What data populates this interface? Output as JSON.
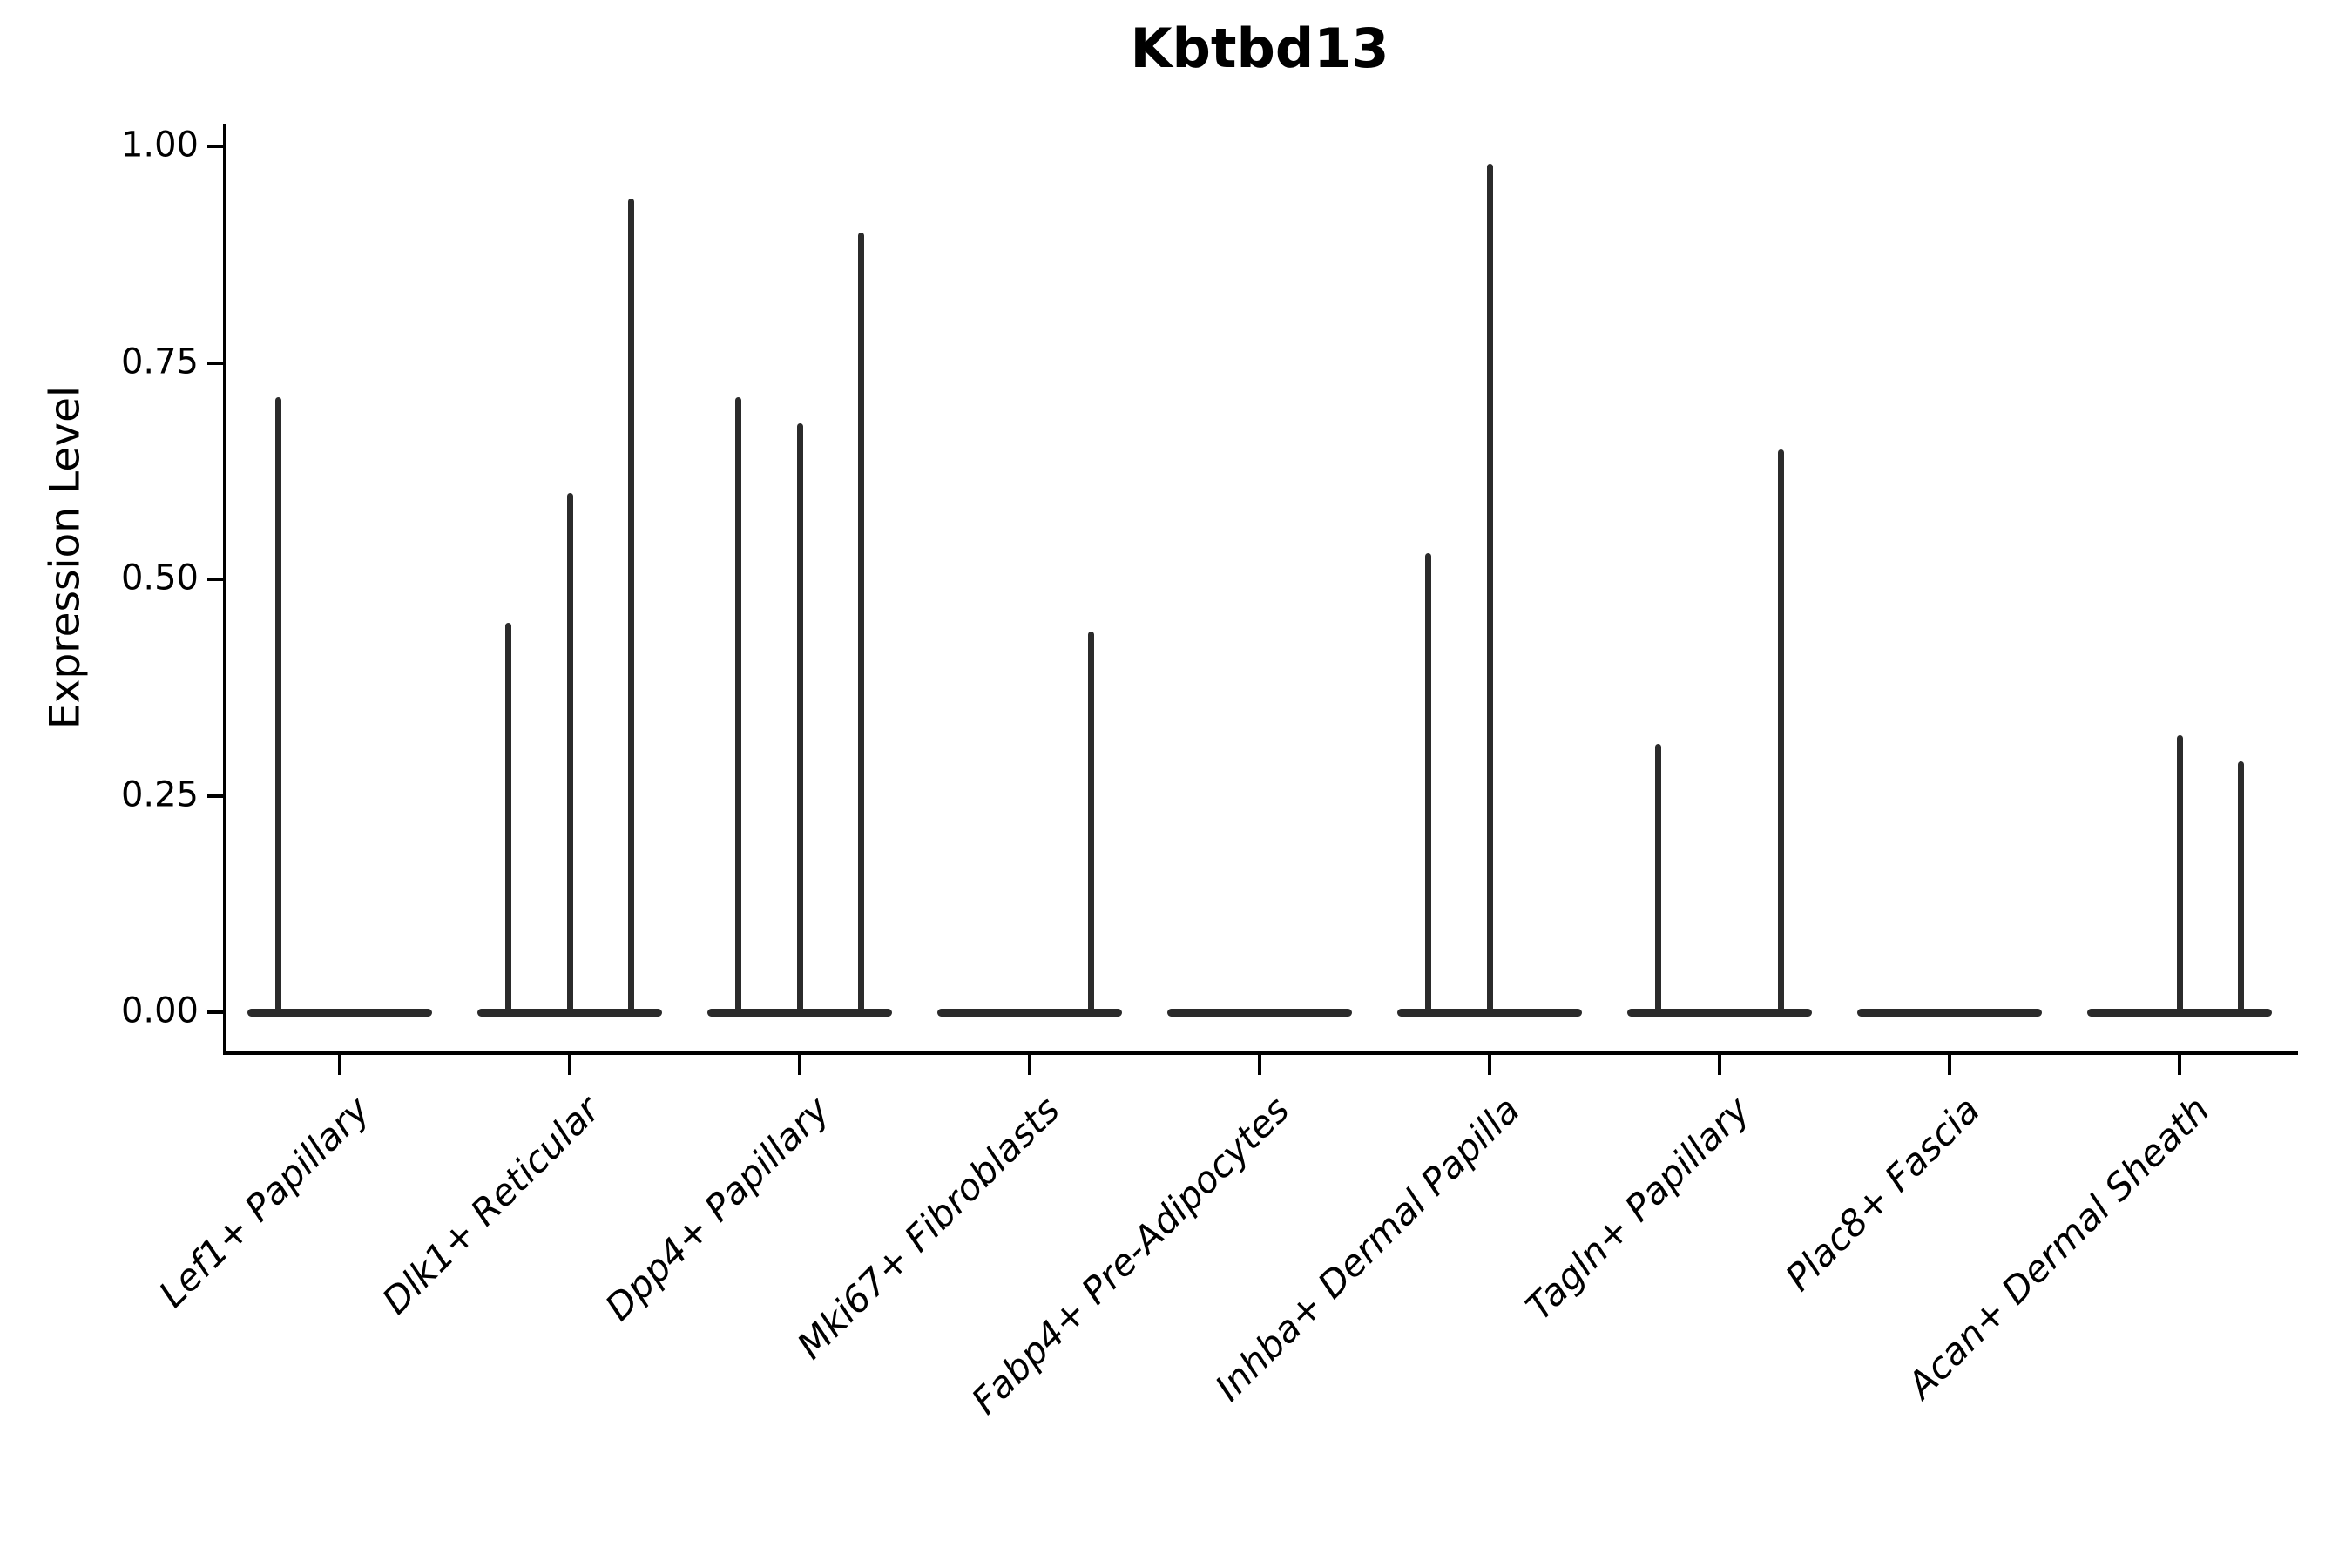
{
  "chart_data": {
    "type": "violin",
    "title": "Kbtbd13",
    "ylabel": "Expression Level",
    "xlabel": "",
    "grid": false,
    "legend": "none",
    "violin_color": "#2b2b2b",
    "axis_color": "#000000",
    "yticks": [
      "0.00",
      "0.25",
      "0.50",
      "0.75",
      "1.00"
    ],
    "ytick_values": [
      0,
      0.25,
      0.5,
      0.75,
      1.0
    ],
    "ylim": [
      -0.047,
      1.026
    ],
    "violins_per_group": 3,
    "categories": [
      "Lef1+ Papillary",
      "Dlk1+ Reticular",
      "Dpp4+ Papillary",
      "Mki67+ Fibroblasts",
      "Fabp4+ Pre-Adipocytes",
      "Inhba+ Dermal Papilla",
      "Tagln+ Papillary",
      "Plac8+ Fascia",
      "Acan+ Dermal Sheath"
    ],
    "groups": [
      {
        "label": "Lef1+ Papillary",
        "spike_maxima": [
          0.71,
          null,
          null
        ]
      },
      {
        "label": "Dlk1+ Reticular",
        "spike_maxima": [
          0.45,
          0.6,
          0.94
        ]
      },
      {
        "label": "Dpp4+ Papillary",
        "spike_maxima": [
          0.71,
          0.68,
          0.9
        ]
      },
      {
        "label": "Mki67+ Fibroblasts",
        "spike_maxima": [
          null,
          null,
          0.44
        ]
      },
      {
        "label": "Fabp4+ Pre-Adipocytes",
        "spike_maxima": [
          null,
          null,
          null
        ]
      },
      {
        "label": "Inhba+ Dermal Papilla",
        "spike_maxima": [
          0.53,
          0.98,
          null
        ]
      },
      {
        "label": "Tagln+ Papillary",
        "spike_maxima": [
          0.31,
          null,
          0.65
        ]
      },
      {
        "label": "Plac8+ Fascia",
        "spike_maxima": [
          null,
          null,
          null
        ]
      },
      {
        "label": "Acan+ Dermal Sheath",
        "spike_maxima": [
          null,
          0.32,
          0.29
        ]
      }
    ],
    "description": "Violin plot of Kbtbd13 expression; each group holds 3 near-zero-density violins (flat base at 0 with a thin spike up to the max expressed value)."
  }
}
